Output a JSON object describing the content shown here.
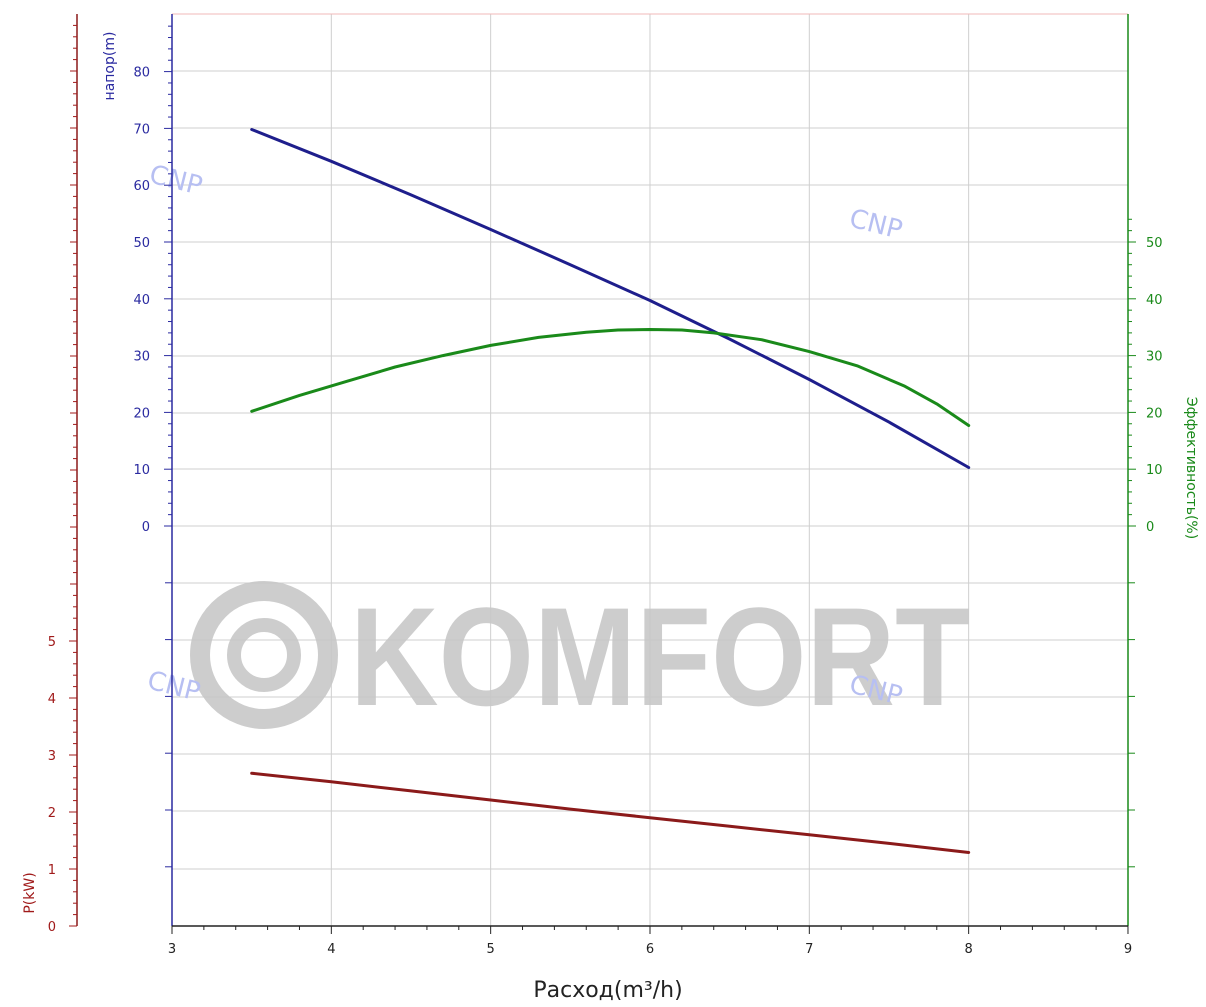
{
  "chart_data": {
    "type": "line",
    "xlabel": "Расход(m³/h)",
    "x_ticks": [
      "3",
      "4",
      "5",
      "6",
      "7",
      "8",
      "9"
    ],
    "xlim": [
      3,
      9
    ],
    "axes": {
      "head": {
        "label": "напор(m)",
        "ticks": [
          "0",
          "10",
          "20",
          "30",
          "40",
          "50",
          "60",
          "70",
          "80"
        ],
        "color": "#2a2aa0",
        "range": [
          0,
          90
        ]
      },
      "efficiency": {
        "label": "Эффективность(%)",
        "ticks": [
          "0",
          "10",
          "20",
          "30",
          "40",
          "50"
        ],
        "color": "#1a8a1a",
        "range": [
          0,
          50
        ]
      },
      "power": {
        "label": "P(kW)",
        "ticks": [
          "0",
          "1",
          "2",
          "3",
          "4",
          "5"
        ],
        "color": "#a01a1a",
        "range": [
          0,
          5
        ]
      }
    },
    "series": [
      {
        "axis": "head",
        "color": "#1e1e8c",
        "points": [
          [
            3.5,
            69.8
          ],
          [
            4,
            64.2
          ],
          [
            4.5,
            58.3
          ],
          [
            5,
            52.2
          ],
          [
            5.5,
            46
          ],
          [
            6,
            39.7
          ],
          [
            6.5,
            32.9
          ],
          [
            7,
            25.8
          ],
          [
            7.5,
            18.3
          ],
          [
            8,
            10.3
          ]
        ]
      },
      {
        "axis": "efficiency",
        "color": "#1a8a1a",
        "points": [
          [
            3.5,
            20.2
          ],
          [
            3.8,
            23
          ],
          [
            4.1,
            25.5
          ],
          [
            4.4,
            28
          ],
          [
            4.7,
            30
          ],
          [
            5,
            31.8
          ],
          [
            5.3,
            33.2
          ],
          [
            5.6,
            34.1
          ],
          [
            5.8,
            34.5
          ],
          [
            6,
            34.6
          ],
          [
            6.2,
            34.5
          ],
          [
            6.4,
            34
          ],
          [
            6.7,
            32.8
          ],
          [
            7,
            30.7
          ],
          [
            7.3,
            28.2
          ],
          [
            7.6,
            24.6
          ],
          [
            7.8,
            21.5
          ],
          [
            8,
            17.7
          ]
        ]
      },
      {
        "axis": "power",
        "color": "#8b1a1a",
        "points": [
          [
            3.5,
            2.68
          ],
          [
            4,
            2.53
          ],
          [
            4.5,
            2.37
          ],
          [
            5,
            2.21
          ],
          [
            5.5,
            2.05
          ],
          [
            6,
            1.9
          ],
          [
            6.5,
            1.75
          ],
          [
            7,
            1.6
          ],
          [
            7.5,
            1.45
          ],
          [
            8,
            1.29
          ]
        ]
      }
    ]
  },
  "watermark": {
    "brand": "KOMFORT",
    "stamp": "CNP"
  }
}
